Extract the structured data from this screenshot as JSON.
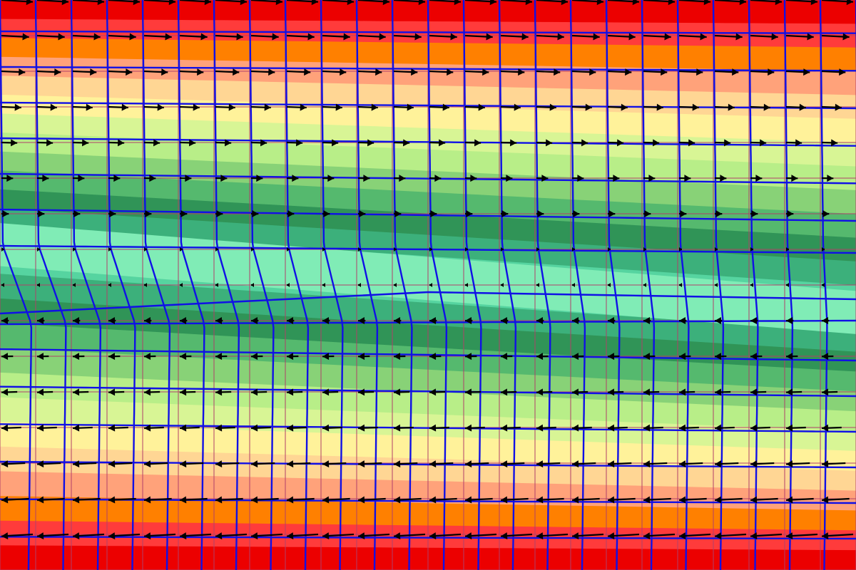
{
  "figure": {
    "description_kind": "velocity-field-with-deforming-mesh",
    "colors": {
      "contour_levels": [
        "#ec0000",
        "#ff3b3b",
        "#ff8000",
        "#ffa27a",
        "#ffd694",
        "#fff29a",
        "#d8f595",
        "#b8ee88",
        "#88d277",
        "#55b96e",
        "#309457",
        "#3cb07b",
        "#56d4a0",
        "#80ecb6",
        "#b2ecce"
      ],
      "reference_grid": "#b0406a",
      "deformed_mesh": "#1010e6",
      "arrows": "#000000"
    },
    "field": {
      "upper_flow_direction": "right",
      "lower_flow_direction": "left",
      "arrow_rows": 16,
      "arrow_columns": 24
    }
  }
}
